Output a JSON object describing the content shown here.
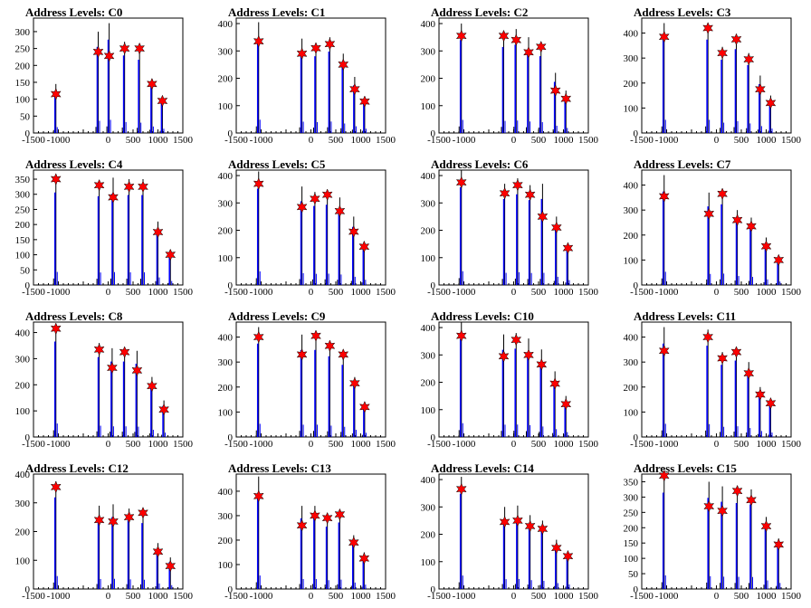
{
  "figure": {
    "title_prefix": "Address Levels: ",
    "x_ticks": [
      -1500,
      -1000,
      0,
      500,
      1000,
      1500
    ],
    "x_tick_labels": [
      "-1500",
      "-1000",
      "0",
      "500",
      "1000",
      "1500"
    ],
    "xlim": [
      -1500,
      1500
    ],
    "colors": {
      "histogram": "#0000ff",
      "marker": "#ff0000",
      "axis": "#000000"
    },
    "marker_shape": "star"
  },
  "chart_data": [
    {
      "type": "bar",
      "title": "Address Levels: C0",
      "ylim": [
        0,
        340
      ],
      "y_ticks": [
        0,
        50,
        100,
        150,
        200,
        250,
        300
      ],
      "x": [
        -1050,
        -200,
        20,
        330,
        630,
        880,
        1090
      ],
      "values": [
        145,
        300,
        325,
        270,
        255,
        160,
        105
      ],
      "markers": [
        115,
        240,
        228,
        250,
        250,
        145,
        95
      ]
    },
    {
      "type": "bar",
      "title": "Address Levels: C1",
      "ylim": [
        0,
        420
      ],
      "y_ticks": [
        0,
        100,
        200,
        300,
        400
      ],
      "x": [
        -1050,
        -180,
        100,
        380,
        650,
        880,
        1080
      ],
      "values": [
        405,
        345,
        330,
        350,
        290,
        205,
        130
      ],
      "markers": [
        335,
        290,
        310,
        325,
        250,
        160,
        115
      ]
    },
    {
      "type": "bar",
      "title": "Address Levels: C2",
      "ylim": [
        0,
        420
      ],
      "y_ticks": [
        0,
        100,
        200,
        300,
        400
      ],
      "x": [
        -1050,
        -200,
        50,
        300,
        550,
        840,
        1050
      ],
      "values": [
        400,
        370,
        380,
        350,
        330,
        220,
        155
      ],
      "markers": [
        355,
        355,
        340,
        295,
        315,
        155,
        125
      ]
    },
    {
      "type": "bar",
      "title": "Address Levels: C3",
      "ylim": [
        0,
        460
      ],
      "y_ticks": [
        0,
        100,
        200,
        300,
        400
      ],
      "x": [
        -1050,
        -170,
        120,
        400,
        650,
        880,
        1090
      ],
      "values": [
        440,
        440,
        345,
        395,
        320,
        230,
        150
      ],
      "markers": [
        385,
        420,
        320,
        375,
        295,
        175,
        120
      ]
    },
    {
      "type": "bar",
      "title": "Address Levels: C4",
      "ylim": [
        0,
        380
      ],
      "y_ticks": [
        0,
        50,
        100,
        150,
        200,
        250,
        300,
        350
      ],
      "x": [
        -1050,
        -180,
        100,
        420,
        700,
        1000,
        1250
      ],
      "values": [
        360,
        345,
        355,
        350,
        350,
        210,
        110
      ],
      "markers": [
        350,
        330,
        290,
        325,
        325,
        175,
        100
      ]
    },
    {
      "type": "bar",
      "title": "Address Levels: C5",
      "ylim": [
        0,
        420
      ],
      "y_ticks": [
        0,
        100,
        200,
        300,
        400
      ],
      "x": [
        -1050,
        -180,
        80,
        330,
        580,
        860,
        1070
      ],
      "values": [
        415,
        360,
        340,
        345,
        320,
        250,
        160
      ],
      "markers": [
        370,
        285,
        315,
        330,
        270,
        195,
        140
      ]
    },
    {
      "type": "bar",
      "title": "Address Levels: C6",
      "ylim": [
        0,
        420
      ],
      "y_ticks": [
        0,
        100,
        200,
        300,
        400
      ],
      "x": [
        -1050,
        -180,
        80,
        330,
        580,
        860,
        1090
      ],
      "values": [
        420,
        370,
        390,
        365,
        370,
        250,
        150
      ],
      "markers": [
        375,
        335,
        365,
        330,
        250,
        210,
        135
      ]
    },
    {
      "type": "bar",
      "title": "Address Levels: C7",
      "ylim": [
        0,
        460
      ],
      "y_ticks": [
        0,
        100,
        200,
        300,
        400
      ],
      "x": [
        -1050,
        -150,
        120,
        420,
        700,
        1000,
        1250
      ],
      "values": [
        440,
        370,
        380,
        300,
        270,
        190,
        115
      ],
      "markers": [
        355,
        285,
        365,
        260,
        235,
        155,
        100
      ]
    },
    {
      "type": "bar",
      "title": "Address Levels: C8",
      "ylim": [
        0,
        440
      ],
      "y_ticks": [
        0,
        100,
        200,
        300,
        400
      ],
      "x": [
        -1050,
        -180,
        80,
        330,
        580,
        880,
        1120
      ],
      "values": [
        430,
        360,
        340,
        340,
        330,
        230,
        140
      ],
      "markers": [
        415,
        335,
        265,
        325,
        255,
        195,
        105
      ]
    },
    {
      "type": "bar",
      "title": "Address Levels: C9",
      "ylim": [
        0,
        460
      ],
      "y_ticks": [
        0,
        100,
        200,
        300,
        400
      ],
      "x": [
        -1050,
        -180,
        100,
        380,
        650,
        880,
        1080
      ],
      "values": [
        440,
        410,
        410,
        380,
        340,
        240,
        140
      ],
      "markers": [
        400,
        330,
        405,
        365,
        330,
        215,
        120
      ]
    },
    {
      "type": "bar",
      "title": "Address Levels: C10",
      "ylim": [
        0,
        420
      ],
      "y_ticks": [
        0,
        100,
        200,
        300,
        400
      ],
      "x": [
        -1050,
        -200,
        50,
        300,
        560,
        830,
        1050
      ],
      "values": [
        420,
        375,
        380,
        360,
        320,
        240,
        150
      ],
      "markers": [
        370,
        295,
        355,
        300,
        265,
        195,
        120
      ]
    },
    {
      "type": "bar",
      "title": "Address Levels: C11",
      "ylim": [
        0,
        460
      ],
      "y_ticks": [
        0,
        100,
        200,
        300,
        400
      ],
      "x": [
        -1050,
        -170,
        120,
        400,
        650,
        880,
        1090
      ],
      "values": [
        440,
        430,
        340,
        360,
        300,
        200,
        150
      ],
      "markers": [
        345,
        400,
        315,
        340,
        255,
        170,
        135
      ]
    },
    {
      "type": "bar",
      "title": "Address Levels: C12",
      "ylim": [
        0,
        400
      ],
      "y_ticks": [
        0,
        100,
        200,
        300,
        400
      ],
      "x": [
        -1050,
        -180,
        100,
        420,
        700,
        1000,
        1250
      ],
      "values": [
        375,
        290,
        295,
        280,
        270,
        160,
        110
      ],
      "markers": [
        355,
        240,
        235,
        250,
        265,
        130,
        80
      ]
    },
    {
      "type": "bar",
      "title": "Address Levels: C13",
      "ylim": [
        0,
        470
      ],
      "y_ticks": [
        0,
        100,
        200,
        300,
        400
      ],
      "x": [
        -1050,
        -180,
        80,
        330,
        580,
        860,
        1070
      ],
      "values": [
        460,
        340,
        340,
        300,
        320,
        220,
        150
      ],
      "markers": [
        380,
        260,
        300,
        290,
        305,
        190,
        125
      ]
    },
    {
      "type": "bar",
      "title": "Address Levels: C14",
      "ylim": [
        0,
        420
      ],
      "y_ticks": [
        0,
        100,
        200,
        300,
        400
      ],
      "x": [
        -1050,
        -180,
        80,
        330,
        580,
        860,
        1090
      ],
      "values": [
        410,
        300,
        305,
        270,
        250,
        180,
        140
      ],
      "markers": [
        365,
        245,
        250,
        230,
        220,
        150,
        120
      ]
    },
    {
      "type": "bar",
      "title": "Address Levels: C15",
      "ylim": [
        0,
        375
      ],
      "y_ticks": [
        0,
        50,
        100,
        150,
        200,
        250,
        300,
        350
      ],
      "x": [
        -1050,
        -150,
        120,
        420,
        700,
        1000,
        1250
      ],
      "values": [
        370,
        350,
        335,
        330,
        325,
        235,
        165
      ],
      "markers": [
        370,
        270,
        255,
        320,
        290,
        205,
        145
      ]
    }
  ]
}
